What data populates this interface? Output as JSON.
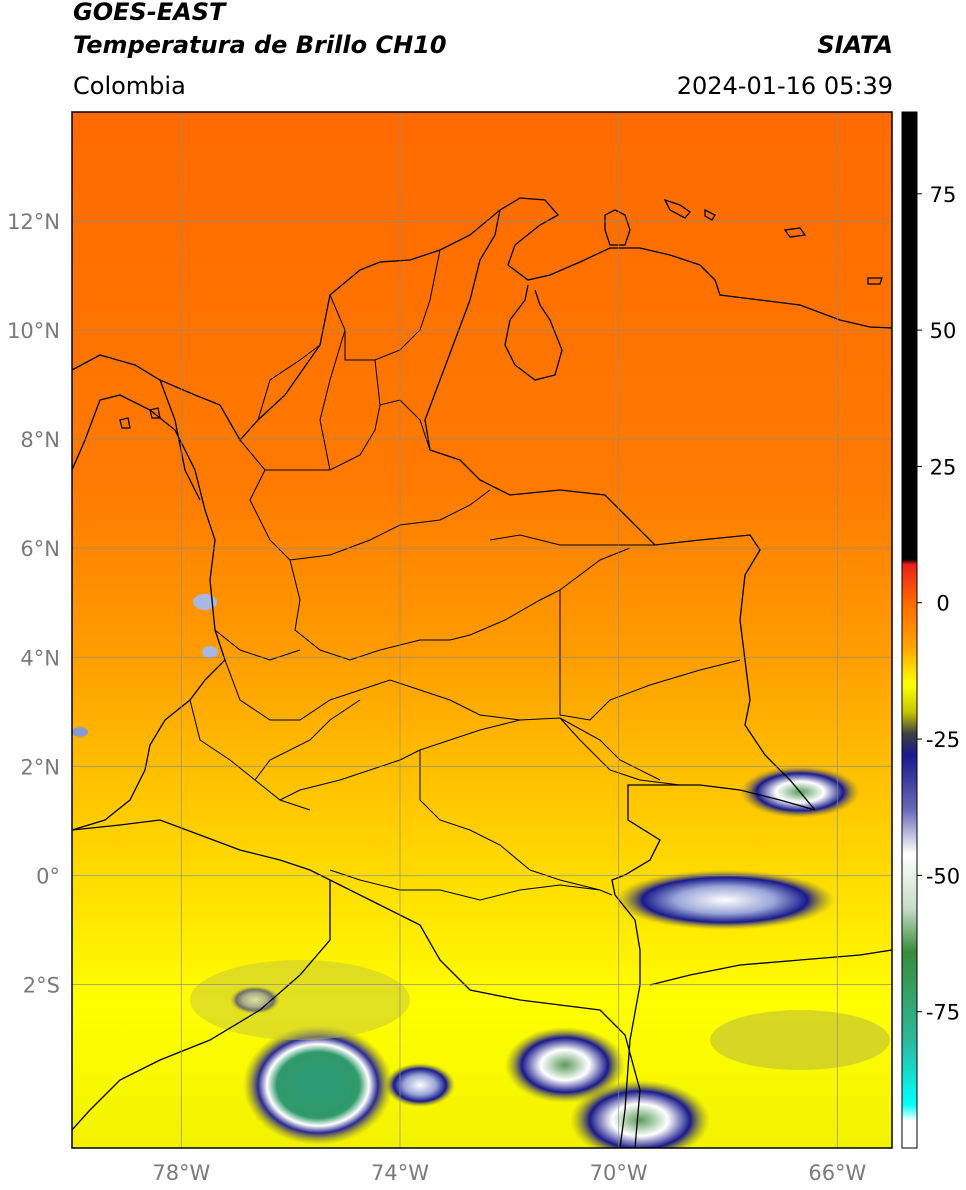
{
  "header": {
    "line1": "GOES-EAST",
    "line2": "Temperatura de Brillo CH10",
    "organization": "SIATA",
    "region": "Colombia",
    "timestamp": "2024-01-16 05:39"
  },
  "map": {
    "lat_ticks": [
      "12°N",
      "10°N",
      "8°N",
      "6°N",
      "4°N",
      "2°N",
      "0°",
      "2°S"
    ],
    "lon_ticks": [
      "78°W",
      "74°W",
      "70°W",
      "66°W"
    ],
    "gridlines": true,
    "extent": {
      "lon_min": -80.0,
      "lon_max": -65.0,
      "lat_min": -5.0,
      "lat_max": 14.0
    }
  },
  "colorbar": {
    "ticks": [
      "75",
      "50",
      "25",
      "0",
      "-25",
      "-50",
      "-75"
    ],
    "range": [
      -100,
      90
    ],
    "stops": [
      {
        "value": 90,
        "color": "#000000"
      },
      {
        "value": 8,
        "color": "#000000"
      },
      {
        "value": 7,
        "color": "#e8231c"
      },
      {
        "value": 0,
        "color": "#ff6a00"
      },
      {
        "value": -8,
        "color": "#ffa500"
      },
      {
        "value": -15,
        "color": "#ffff00"
      },
      {
        "value": -20,
        "color": "#c8c800"
      },
      {
        "value": -24,
        "color": "#404040"
      },
      {
        "value": -28,
        "color": "#1a1a8c"
      },
      {
        "value": -38,
        "color": "#6a6ab8"
      },
      {
        "value": -46,
        "color": "#ffffff"
      },
      {
        "value": -56,
        "color": "#c8dcc8"
      },
      {
        "value": -64,
        "color": "#3a8c3a"
      },
      {
        "value": -80,
        "color": "#2eb89a"
      },
      {
        "value": -92,
        "color": "#00ffff"
      },
      {
        "value": -95,
        "color": "#ffffff"
      },
      {
        "value": -100,
        "color": "#ffffff"
      }
    ]
  }
}
